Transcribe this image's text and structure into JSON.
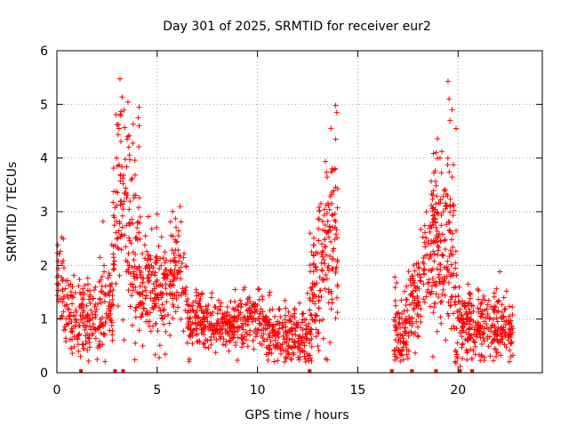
{
  "chart_data": {
    "type": "scatter",
    "title": "Day 301 of 2025, SRMTID for receiver eur2",
    "xlabel": "GPS time / hours",
    "ylabel": "SRMTID / TECUs",
    "xlim": [
      0,
      24.2
    ],
    "ylim": [
      0,
      6
    ],
    "xticks": [
      0,
      5,
      10,
      15,
      20
    ],
    "yticks": [
      0,
      1,
      2,
      3,
      4,
      5,
      6
    ],
    "grid": true,
    "marker": "+",
    "color": "#ff0000",
    "segments": [
      {
        "t0": 0.0,
        "t1": 2.8,
        "pts": 260,
        "env": [
          [
            0.0,
            1.9
          ],
          [
            0.5,
            1.3
          ],
          [
            1.0,
            0.9
          ],
          [
            1.5,
            1.0
          ],
          [
            2.0,
            1.1
          ],
          [
            2.5,
            1.2
          ],
          [
            2.8,
            1.4
          ]
        ],
        "spread": 0.5
      },
      {
        "t0": 2.8,
        "t1": 4.2,
        "pts": 170,
        "env": [
          [
            2.8,
            2.5
          ],
          [
            3.1,
            3.4
          ],
          [
            3.5,
            3.0
          ],
          [
            3.8,
            2.5
          ],
          [
            4.2,
            1.7
          ]
        ],
        "spread": 1.1
      },
      {
        "t0": 4.2,
        "t1": 6.5,
        "pts": 230,
        "env": [
          [
            4.2,
            1.5
          ],
          [
            4.8,
            1.7
          ],
          [
            5.3,
            1.6
          ],
          [
            5.8,
            1.8
          ],
          [
            6.2,
            1.9
          ],
          [
            6.5,
            1.3
          ]
        ],
        "spread": 0.6
      },
      {
        "t0": 6.5,
        "t1": 12.5,
        "pts": 560,
        "env": [
          [
            6.5,
            1.0
          ],
          [
            7.5,
            0.9
          ],
          [
            8.5,
            0.85
          ],
          [
            9.5,
            1.1
          ],
          [
            10.5,
            0.9
          ],
          [
            11.5,
            0.6
          ],
          [
            12.5,
            0.7
          ]
        ],
        "spread": 0.35
      },
      {
        "t0": 12.5,
        "t1": 14.0,
        "pts": 190,
        "env": [
          [
            12.5,
            1.0
          ],
          [
            13.0,
            1.6
          ],
          [
            13.5,
            2.3
          ],
          [
            13.8,
            2.8
          ],
          [
            14.0,
            2.2
          ]
        ],
        "spread": 0.9
      },
      {
        "t0": 16.8,
        "t1": 18.6,
        "pts": 190,
        "env": [
          [
            16.8,
            0.8
          ],
          [
            17.2,
            0.6
          ],
          [
            17.6,
            1.2
          ],
          [
            18.2,
            1.6
          ],
          [
            18.6,
            2.2
          ]
        ],
        "spread": 0.6
      },
      {
        "t0": 18.6,
        "t1": 20.0,
        "pts": 200,
        "env": [
          [
            18.6,
            2.3
          ],
          [
            19.0,
            2.4
          ],
          [
            19.4,
            2.5
          ],
          [
            19.8,
            2.0
          ],
          [
            20.0,
            1.3
          ]
        ],
        "spread": 1.0
      },
      {
        "t0": 20.0,
        "t1": 22.8,
        "pts": 280,
        "env": [
          [
            20.0,
            1.0
          ],
          [
            20.5,
            0.9
          ],
          [
            21.0,
            0.8
          ],
          [
            21.5,
            1.0
          ],
          [
            22.0,
            0.9
          ],
          [
            22.5,
            0.9
          ],
          [
            22.8,
            0.8
          ]
        ],
        "spread": 0.4
      }
    ],
    "highlights": [
      {
        "x": 3.0,
        "y": 4.62
      },
      {
        "x": 3.1,
        "y": 4.55
      },
      {
        "x": 4.1,
        "y": 4.95
      },
      {
        "x": 4.05,
        "y": 4.75
      },
      {
        "x": 4.1,
        "y": 4.6
      },
      {
        "x": 3.6,
        "y": 4.42
      },
      {
        "x": 3.5,
        "y": 4.35
      },
      {
        "x": 13.9,
        "y": 4.98
      },
      {
        "x": 13.95,
        "y": 4.85
      },
      {
        "x": 13.9,
        "y": 4.35
      },
      {
        "x": 19.5,
        "y": 5.43
      },
      {
        "x": 19.55,
        "y": 5.1
      },
      {
        "x": 19.7,
        "y": 4.9
      },
      {
        "x": 19.6,
        "y": 4.7
      },
      {
        "x": 19.9,
        "y": 4.55
      },
      {
        "x": 19.1,
        "y": 4.0
      },
      {
        "x": 18.9,
        "y": 4.1
      },
      {
        "x": 2.3,
        "y": 2.82
      },
      {
        "x": 5.1,
        "y": 0.28
      },
      {
        "x": 20.1,
        "y": 0.12
      },
      {
        "x": 19.9,
        "y": 0.18
      }
    ],
    "zero_markers": [
      1.2,
      2.9,
      3.3,
      12.6,
      16.7,
      17.7,
      18.9,
      20.1,
      20.7
    ]
  }
}
